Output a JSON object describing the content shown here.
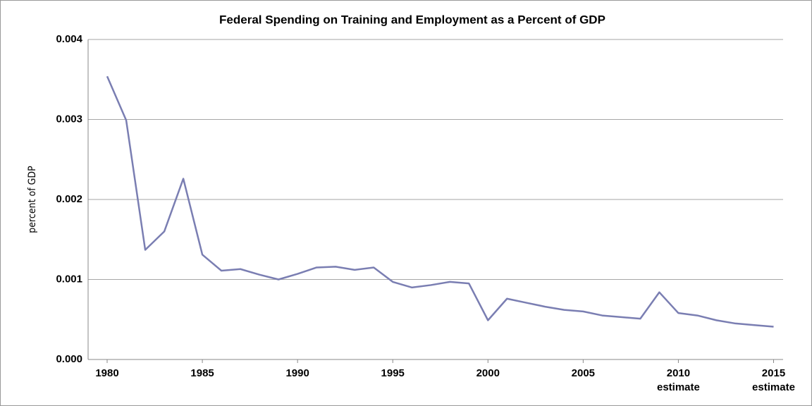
{
  "chart_data": {
    "type": "line",
    "title": "Federal Spending on Training and Employment as a Percent of GDP",
    "y_label": "percent of GDP",
    "x": [
      1980,
      1981,
      1982,
      1983,
      1984,
      1985,
      1986,
      1987,
      1988,
      1989,
      1990,
      1991,
      1992,
      1993,
      1994,
      1995,
      1996,
      1997,
      1998,
      1999,
      2000,
      2001,
      2002,
      2003,
      2004,
      2005,
      2006,
      2007,
      2008,
      2009,
      2010,
      2011,
      2012,
      2013,
      2014,
      2015
    ],
    "series": [
      {
        "name": "percent of GDP",
        "color": "#7a7eb2",
        "values": [
          0.00354,
          0.00299,
          0.00137,
          0.0016,
          0.00226,
          0.00131,
          0.00111,
          0.00113,
          0.00106,
          0.001,
          0.00107,
          0.00115,
          0.00116,
          0.00112,
          0.00115,
          0.00097,
          0.0009,
          0.00093,
          0.00097,
          0.00095,
          0.00049,
          0.00076,
          0.00071,
          0.00066,
          0.00062,
          0.0006,
          0.00055,
          0.00053,
          0.00051,
          0.00084,
          0.00058,
          0.00055,
          0.00049,
          0.00045,
          0.00043,
          0.00041
        ]
      }
    ],
    "xlim": [
      1979,
      2015.5
    ],
    "xticks": [
      1980,
      1985,
      1990,
      1995,
      2000,
      2005,
      {
        "value": 2010,
        "label": "2010\nestimate"
      },
      {
        "value": 2015,
        "label": "2015\nestimate"
      }
    ],
    "ylim": [
      0,
      0.004
    ],
    "yticks": [
      {
        "value": 0,
        "label": "0.000"
      },
      0.001,
      0.002,
      0.003,
      0.004
    ],
    "grid": true
  }
}
